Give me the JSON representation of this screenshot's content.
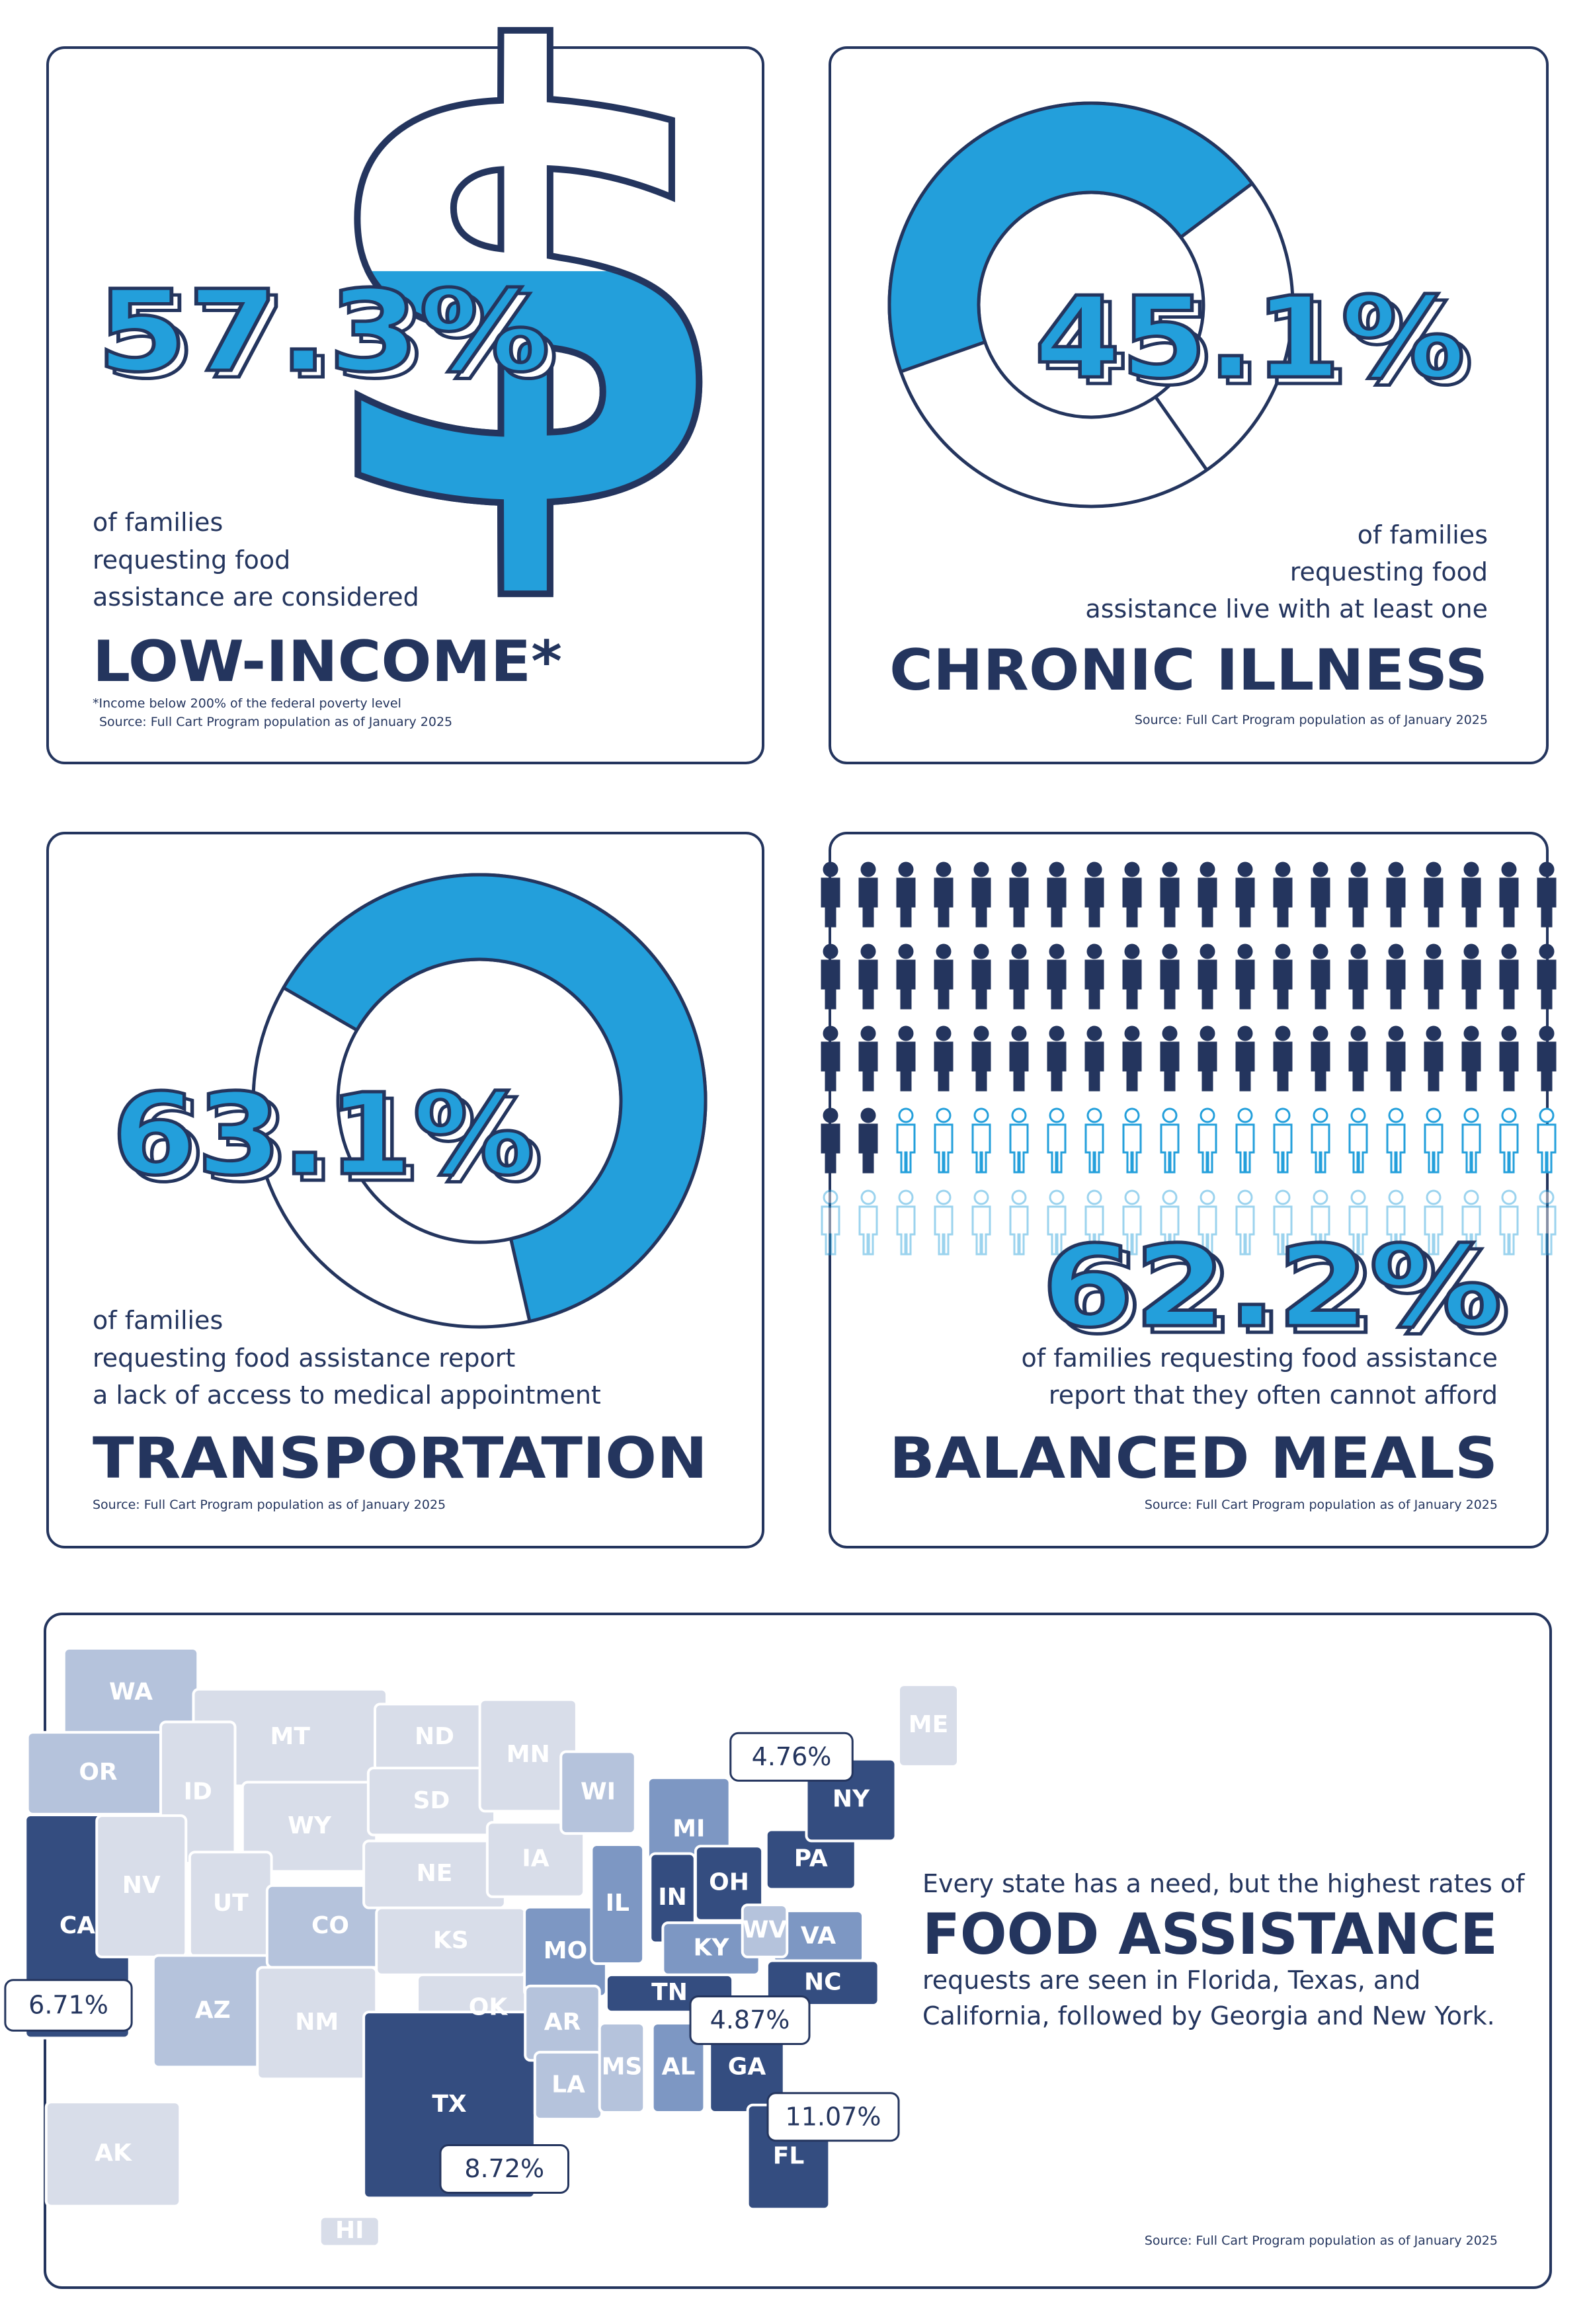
{
  "panels": [
    {
      "stat": {
        "value": 57.3,
        "label": "57.3%"
      },
      "symbol": "$",
      "lines": [
        "of families",
        "requesting food",
        "assistance are considered"
      ],
      "headline": "LOW-INCOME*",
      "footnote": "*Income below 200% of the federal poverty level",
      "source": "Source: Full Cart Program population as of January 2025"
    },
    {
      "stat": {
        "value": 45.1,
        "label": "45.1%"
      },
      "lines": [
        "of families",
        "requesting food",
        "assistance live with at least one"
      ],
      "headline": "CHRONIC ILLNESS",
      "source": "Source: Full Cart Program population as of January 2025"
    },
    {
      "stat": {
        "value": 63.1,
        "label": "63.1%"
      },
      "lines": [
        "of families",
        "requesting food assistance report",
        "a lack of access to medical appointment"
      ],
      "headline": "TRANSPORTATION",
      "source": "Source: Full Cart Program population as of January 2025"
    },
    {
      "stat": {
        "value": 62.2,
        "label": "62.2%"
      },
      "lines": [
        "of families requesting food assistance",
        "report that they often cannot afford"
      ],
      "headline": "BALANCED MEALS",
      "source": "Source: Full Cart Program population as of January 2025"
    }
  ],
  "map": {
    "states": [
      "WA",
      "OR",
      "CA",
      "MT",
      "ID",
      "NV",
      "WY",
      "UT",
      "AZ",
      "CO",
      "NM",
      "ND",
      "SD",
      "NE",
      "KS",
      "OK",
      "TX",
      "MN",
      "IA",
      "MO",
      "AR",
      "LA",
      "WI",
      "IL",
      "MI",
      "IN",
      "OH",
      "KY",
      "TN",
      "MS",
      "AL",
      "GA",
      "FL",
      "PA",
      "NY",
      "VA",
      "WV",
      "NC",
      "ME",
      "AK",
      "HI"
    ],
    "callouts": [
      "4.76%",
      "6.71%",
      "4.87%",
      "11.07%",
      "8.72%"
    ],
    "intro": "Every state has a need, but the highest rates of",
    "headline": "FOOD ASSISTANCE",
    "lines": [
      "requests are seen in Florida, Texas, and",
      "California, followed by Georgia and New York."
    ],
    "source": "Source: Full Cart Program population as of January 2025"
  }
}
